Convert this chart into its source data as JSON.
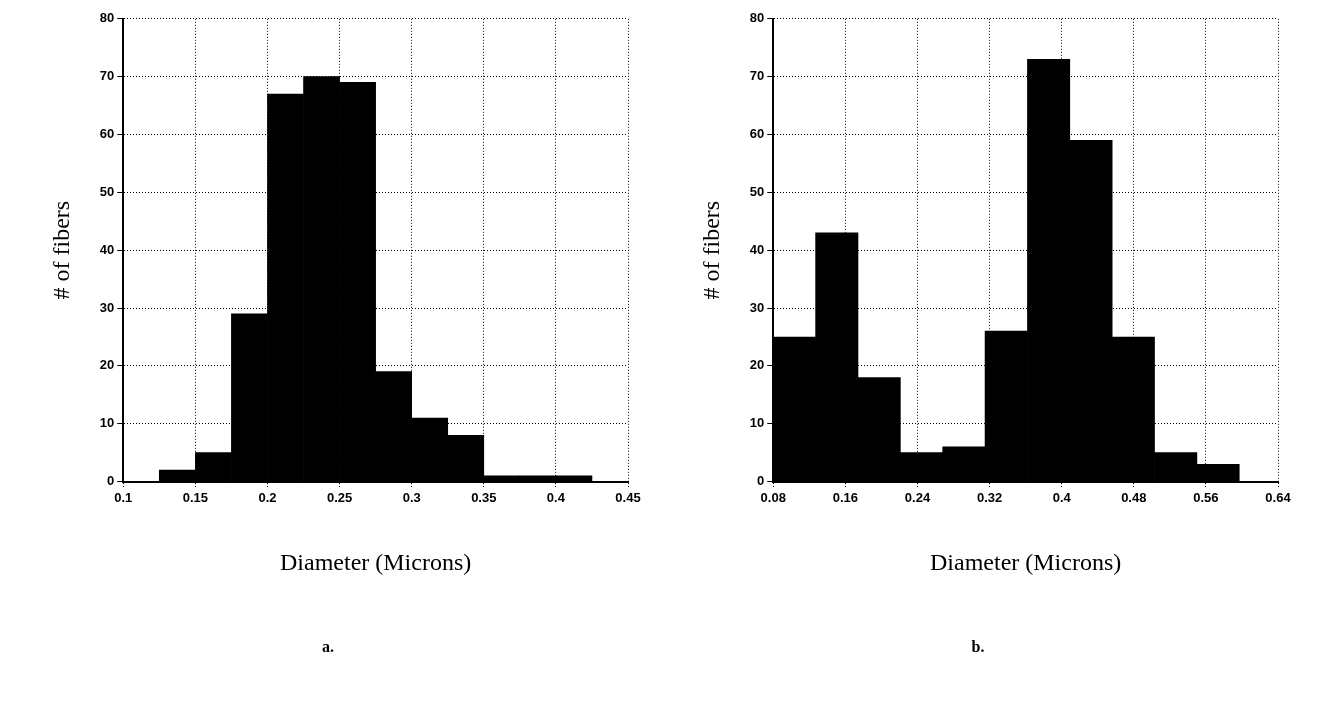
{
  "chart_data": [
    {
      "type": "histogram",
      "xlabel": "Diameter (Microns)",
      "ylabel": "# of fibers",
      "annotations": [
        "a."
      ],
      "bins": [
        0.125,
        0.15,
        0.175,
        0.2,
        0.225,
        0.25,
        0.275,
        0.3,
        0.325,
        0.35,
        0.375,
        0.4,
        0.425
      ],
      "values": [
        2,
        5,
        29,
        67,
        70,
        69,
        19,
        11,
        8,
        1,
        1,
        1
      ],
      "color": "#000000",
      "xlim": [
        0.1,
        0.45
      ],
      "xticks": [
        0.1,
        0.15,
        0.2,
        0.25,
        0.3,
        0.35,
        0.4,
        0.45
      ],
      "ylim": [
        0,
        80
      ],
      "yticks": [
        0,
        10,
        20,
        30,
        40,
        50,
        60,
        70,
        80
      ],
      "grid": true
    },
    {
      "type": "histogram",
      "xlabel": "Diameter (Microns)",
      "ylabel": "# of fibers",
      "annotations": [
        "b."
      ],
      "bins": [
        0.08,
        0.127,
        0.174,
        0.221,
        0.268,
        0.315,
        0.362,
        0.409,
        0.456,
        0.503,
        0.55,
        0.597
      ],
      "values": [
        25,
        43,
        18,
        5,
        6,
        26,
        73,
        59,
        25,
        5,
        3
      ],
      "color": "#000000",
      "xlim": [
        0.08,
        0.64
      ],
      "xticks": [
        0.08,
        0.16,
        0.24,
        0.32,
        0.4,
        0.48,
        0.56,
        0.64
      ],
      "ylim": [
        0,
        80
      ],
      "yticks": [
        0,
        10,
        20,
        30,
        40,
        50,
        60,
        70,
        80
      ],
      "grid": true
    }
  ]
}
